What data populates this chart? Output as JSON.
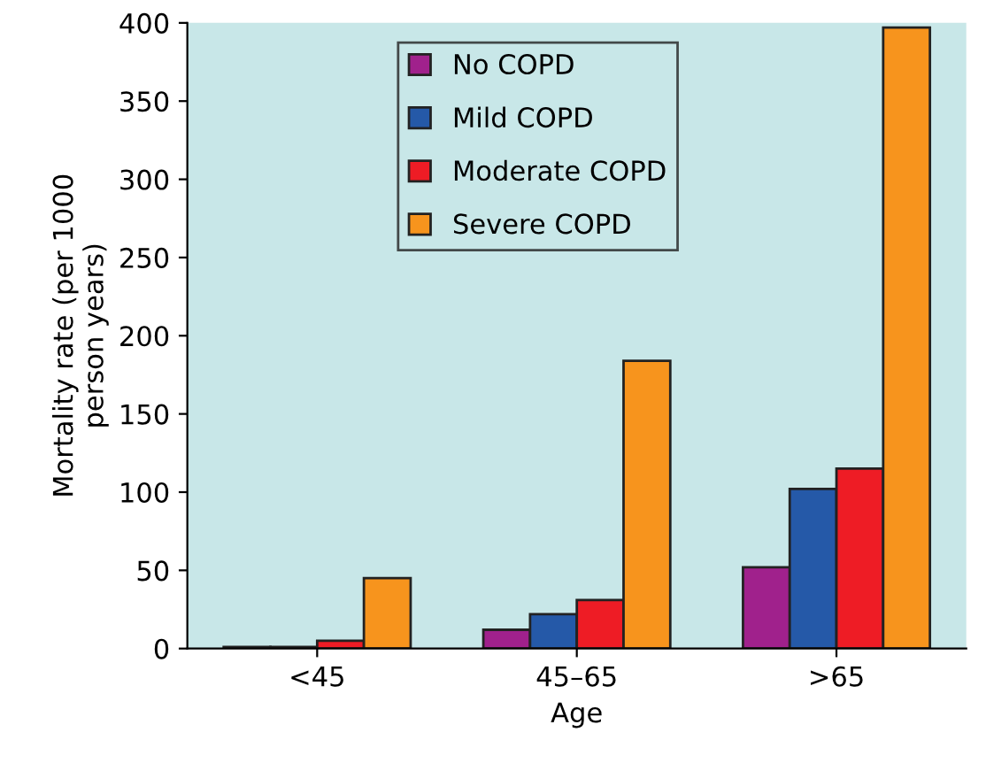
{
  "chart_data": {
    "type": "bar",
    "xlabel": "Age",
    "ylabel": "Mortality rate (per 1000\nperson years)",
    "categories": [
      "<45",
      "45–65",
      ">65"
    ],
    "series": [
      {
        "name": "No COPD",
        "color": "#a0218c",
        "values": [
          1,
          12,
          52
        ]
      },
      {
        "name": "Mild COPD",
        "color": "#2559a8",
        "values": [
          1,
          22,
          102
        ]
      },
      {
        "name": "Moderate COPD",
        "color": "#ee1c25",
        "values": [
          5,
          31,
          115
        ]
      },
      {
        "name": "Severe COPD",
        "color": "#f7941d",
        "values": [
          45,
          184,
          397
        ]
      }
    ],
    "ylim": [
      0,
      400
    ],
    "yticks": [
      0,
      50,
      100,
      150,
      200,
      250,
      300,
      350,
      400
    ],
    "grid": false,
    "legend": "top"
  }
}
